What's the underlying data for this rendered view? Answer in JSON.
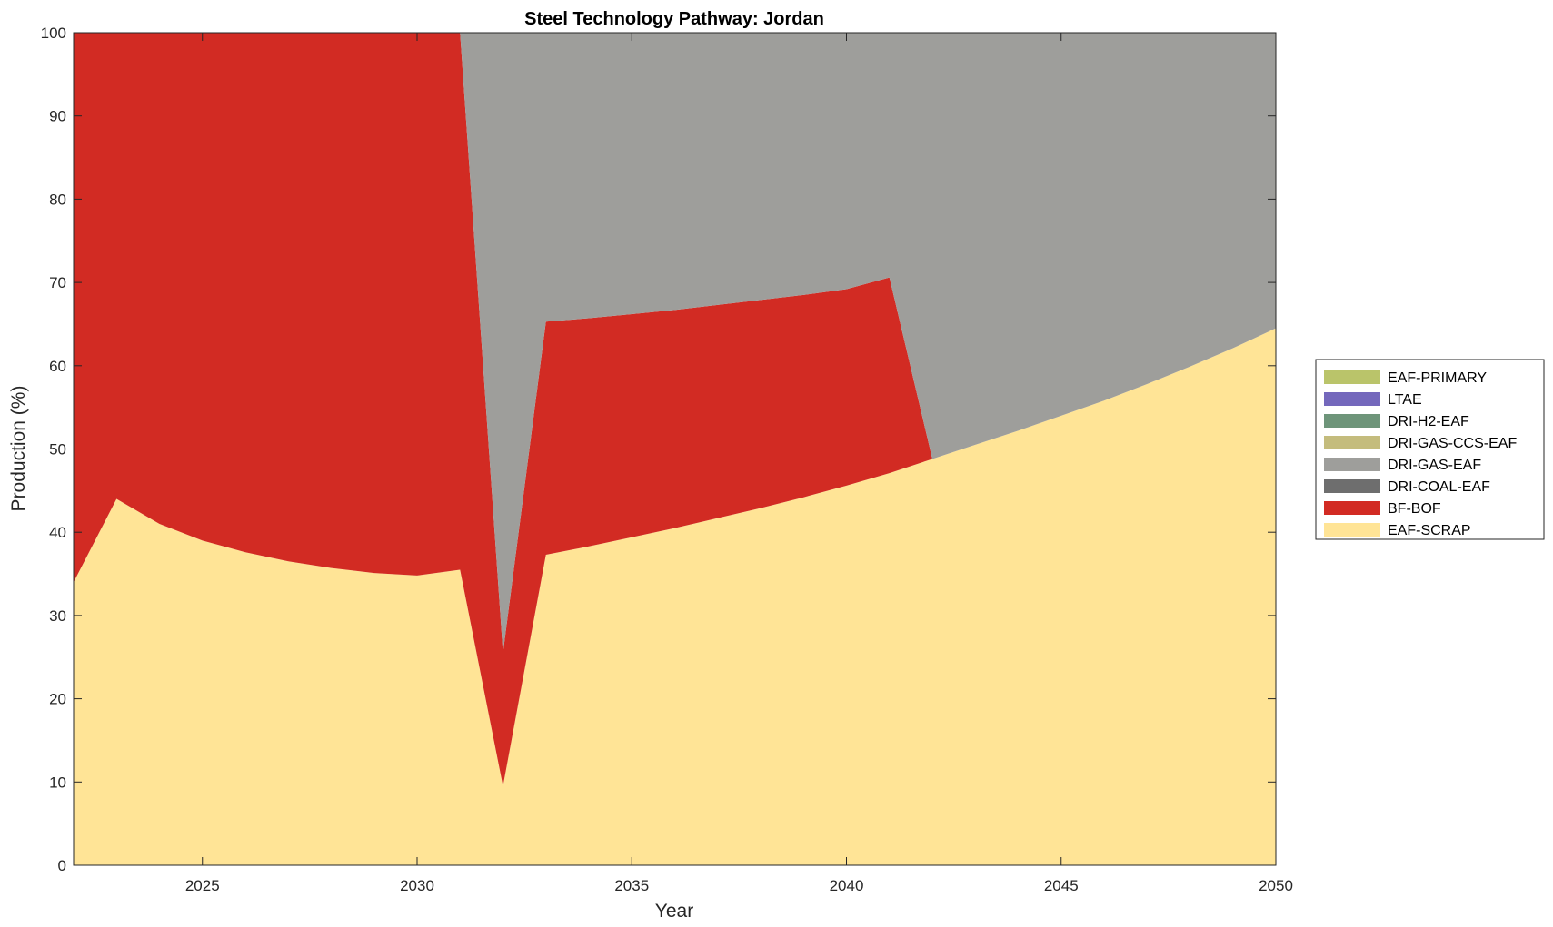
{
  "chart_data": {
    "type": "area",
    "stacked": true,
    "title": "Steel Technology Pathway: Jordan",
    "xlabel": "Year",
    "ylabel": "Production (%)",
    "xlim": [
      2022,
      2050
    ],
    "ylim": [
      0,
      100
    ],
    "xticks": [
      2025,
      2030,
      2035,
      2040,
      2045,
      2050
    ],
    "yticks": [
      0,
      10,
      20,
      30,
      40,
      50,
      60,
      70,
      80,
      90,
      100
    ],
    "grid": false,
    "legend_position": "right",
    "x": [
      2022,
      2023,
      2024,
      2025,
      2026,
      2027,
      2028,
      2029,
      2030,
      2031,
      2032,
      2033,
      2034,
      2035,
      2036,
      2037,
      2038,
      2039,
      2040,
      2041,
      2042,
      2043,
      2044,
      2045,
      2046,
      2047,
      2048,
      2049,
      2050
    ],
    "series": [
      {
        "name": "EAF-SCRAP",
        "color": "#FFE496",
        "values": [
          34.0,
          44.0,
          41.0,
          39.0,
          37.6,
          36.5,
          35.7,
          35.1,
          34.8,
          35.5,
          9.5,
          37.3,
          38.3,
          39.4,
          40.5,
          41.7,
          42.9,
          44.2,
          45.6,
          47.1,
          48.8,
          50.5,
          52.2,
          54.0,
          55.8,
          57.8,
          59.9,
          62.1,
          64.5
        ]
      },
      {
        "name": "BF-BOF",
        "color": "#D22B23",
        "values": [
          66.0,
          56.0,
          59.0,
          61.0,
          62.4,
          63.5,
          64.3,
          64.9,
          65.2,
          64.5,
          16.0,
          28.0,
          27.4,
          26.8,
          26.2,
          25.6,
          25.0,
          24.3,
          23.6,
          23.5,
          0,
          0,
          0,
          0,
          0,
          0,
          0,
          0,
          0
        ]
      },
      {
        "name": "DRI-COAL-EAF",
        "color": "#6E6E6E",
        "values": [
          0,
          0,
          0,
          0,
          0,
          0,
          0,
          0,
          0,
          0,
          0,
          0,
          0,
          0,
          0,
          0,
          0,
          0,
          0,
          0,
          0,
          0,
          0,
          0,
          0,
          0,
          0,
          0,
          0
        ]
      },
      {
        "name": "DRI-GAS-EAF",
        "color": "#9E9E9B",
        "values": [
          0,
          0,
          0,
          0,
          0,
          0,
          0,
          0,
          0,
          0,
          74.5,
          34.7,
          34.3,
          33.8,
          33.3,
          32.7,
          32.1,
          31.5,
          30.8,
          29.4,
          51.2,
          49.5,
          47.8,
          46.0,
          44.2,
          42.2,
          40.1,
          37.9,
          35.5
        ]
      },
      {
        "name": "DRI-GAS-CCS-EAF",
        "color": "#C4BC7D",
        "values": [
          0,
          0,
          0,
          0,
          0,
          0,
          0,
          0,
          0,
          0,
          0,
          0,
          0,
          0,
          0,
          0,
          0,
          0,
          0,
          0,
          0,
          0,
          0,
          0,
          0,
          0,
          0,
          0,
          0
        ]
      },
      {
        "name": "DRI-H2-EAF",
        "color": "#6E957A",
        "values": [
          0,
          0,
          0,
          0,
          0,
          0,
          0,
          0,
          0,
          0,
          0,
          0,
          0,
          0,
          0,
          0,
          0,
          0,
          0,
          0,
          0,
          0,
          0,
          0,
          0,
          0,
          0,
          0,
          0
        ]
      },
      {
        "name": "LTAE",
        "color": "#7468BC",
        "values": [
          0,
          0,
          0,
          0,
          0,
          0,
          0,
          0,
          0,
          0,
          0,
          0,
          0,
          0,
          0,
          0,
          0,
          0,
          0,
          0,
          0,
          0,
          0,
          0,
          0,
          0,
          0,
          0,
          0
        ]
      },
      {
        "name": "EAF-PRIMARY",
        "color": "#BAC46A",
        "values": [
          0,
          0,
          0,
          0,
          0,
          0,
          0,
          0,
          0,
          0,
          0,
          0,
          0,
          0,
          0,
          0,
          0,
          0,
          0,
          0,
          0,
          0,
          0,
          0,
          0,
          0,
          0,
          0,
          0
        ]
      }
    ],
    "legend_order": [
      "EAF-PRIMARY",
      "LTAE",
      "DRI-H2-EAF",
      "DRI-GAS-CCS-EAF",
      "DRI-GAS-EAF",
      "DRI-COAL-EAF",
      "BF-BOF",
      "EAF-SCRAP"
    ]
  }
}
